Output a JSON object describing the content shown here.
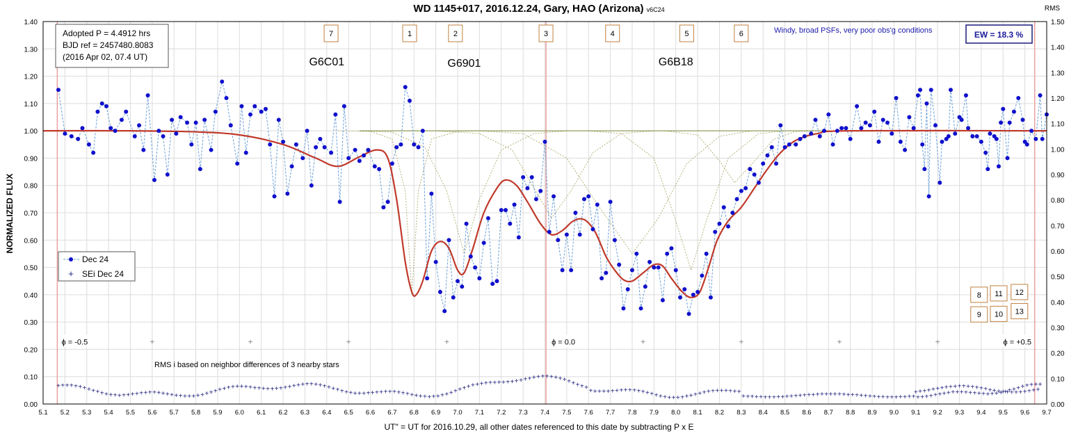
{
  "chart_data": {
    "type": "scatter",
    "title_main": "WD 1145+017, 2016.12.24, Gary, HAO (Arizona)",
    "title_version": "v6C24",
    "xlabel": "UT\" = UT for 2016.10.29, all other dates referenced to this date by subtracting P x E",
    "ylabel": "NORMALIZED FLUX",
    "y2label": "RMS",
    "xlim": [
      5.1,
      9.7
    ],
    "ylim": [
      0.0,
      1.4
    ],
    "y2lim": [
      0.0,
      1.5
    ],
    "x_ticks": [
      "5.1",
      "5.2",
      "5.3",
      "5.4",
      "5.5",
      "5.6",
      "5.7",
      "5.8",
      "5.9",
      "6.0",
      "6.1",
      "6.2",
      "6.3",
      "6.4",
      "6.5",
      "6.6",
      "6.7",
      "6.8",
      "6.9",
      "7.0",
      "7.1",
      "7.2",
      "7.3",
      "7.4",
      "7.5",
      "7.6",
      "7.7",
      "7.8",
      "7.9",
      "8.0",
      "8.1",
      "8.2",
      "8.3",
      "8.4",
      "8.5",
      "8.6",
      "8.7",
      "8.8",
      "8.9",
      "9.0",
      "9.1",
      "9.2",
      "9.3",
      "9.4",
      "9.5",
      "9.6",
      "9.7"
    ],
    "y_ticks": [
      "0.00",
      "0.10",
      "0.20",
      "0.30",
      "0.40",
      "0.50",
      "0.60",
      "0.70",
      "0.80",
      "0.90",
      "1.00",
      "1.10",
      "1.20",
      "1.30",
      "1.40"
    ],
    "y2_ticks": [
      "0.00",
      "0.10",
      "0.20",
      "0.30",
      "0.40",
      "0.50",
      "0.60",
      "0.70",
      "0.80",
      "0.90",
      "1.00",
      "1.10",
      "1.20",
      "1.30",
      "1.40",
      "1.50"
    ],
    "info_lines": [
      "Adopted P = 4.4912  hrs",
      "BJD ref = 2457480.8083",
      "(2016 Apr 02, 07.4 UT)"
    ],
    "conditions_note": "Windy, broad PSFs, very poor obs'g conditions",
    "ew_label": "EW = 18.3 %",
    "rms_note": "RMS i based on neighbor differences of 3 nearby stars",
    "legend": [
      {
        "label": "Dec 24",
        "marker": "dot-dashed",
        "color": "#1010cc"
      },
      {
        "label": "SEi Dec 24",
        "marker": "plus",
        "color": "#1a1a7a"
      }
    ],
    "phase_labels": [
      {
        "x": 5.165,
        "text": "ϕ = -0.5"
      },
      {
        "x": 7.405,
        "text": "ϕ = 0.0"
      },
      {
        "x": 9.645,
        "text": "ϕ = +0.5"
      }
    ],
    "phase_lines": [
      5.165,
      7.405,
      9.645
    ],
    "phase_tick_marks": [
      5.6,
      6.05,
      6.5,
      6.95,
      7.85,
      8.3,
      8.75,
      9.2
    ],
    "object_labels": [
      {
        "x": 6.4,
        "y": 1.24,
        "text": "G6C01"
      },
      {
        "x": 7.03,
        "y": 1.235,
        "text": "G6901"
      },
      {
        "x": 8.0,
        "y": 1.24,
        "text": "G6B18"
      }
    ],
    "dip_boxes_top": [
      {
        "x": 6.42,
        "text": "7"
      },
      {
        "x": 6.78,
        "text": "1"
      },
      {
        "x": 6.99,
        "text": "2"
      },
      {
        "x": 7.405,
        "text": "3"
      },
      {
        "x": 7.71,
        "text": "4"
      },
      {
        "x": 8.05,
        "text": "5"
      },
      {
        "x": 8.3,
        "text": "6"
      }
    ],
    "dip_boxes_right": [
      {
        "x": 9.39,
        "y": 0.4,
        "text": "8"
      },
      {
        "x": 9.39,
        "y": 0.328,
        "text": "9"
      },
      {
        "x": 9.48,
        "y": 0.33,
        "text": "10"
      },
      {
        "x": 9.48,
        "y": 0.405,
        "text": "11"
      },
      {
        "x": 9.575,
        "y": 0.41,
        "text": "12"
      },
      {
        "x": 9.575,
        "y": 0.34,
        "text": "13"
      }
    ],
    "colors": {
      "data": "#1010cc",
      "data_line": "#6a9fd8",
      "model": "#c0392b",
      "components": "#b5b07a",
      "baseline": "#7a8a3a",
      "phase_line": "#e8a0a0",
      "box_border": "#c08040",
      "grid": "#dcdcdc",
      "sei": "#1a1a7a"
    },
    "model_points": [
      [
        5.1,
        1.0
      ],
      [
        5.5,
        1.0
      ],
      [
        5.8,
        0.996
      ],
      [
        6.0,
        0.985
      ],
      [
        6.2,
        0.95
      ],
      [
        6.35,
        0.9
      ],
      [
        6.45,
        0.87
      ],
      [
        6.55,
        0.905
      ],
      [
        6.63,
        0.93
      ],
      [
        6.68,
        0.9
      ],
      [
        6.72,
        0.75
      ],
      [
        6.76,
        0.52
      ],
      [
        6.79,
        0.41
      ],
      [
        6.81,
        0.4
      ],
      [
        6.84,
        0.45
      ],
      [
        6.88,
        0.56
      ],
      [
        6.92,
        0.595
      ],
      [
        6.96,
        0.57
      ],
      [
        7.0,
        0.49
      ],
      [
        7.03,
        0.48
      ],
      [
        7.07,
        0.57
      ],
      [
        7.12,
        0.7
      ],
      [
        7.18,
        0.79
      ],
      [
        7.22,
        0.82
      ],
      [
        7.27,
        0.8
      ],
      [
        7.32,
        0.74
      ],
      [
        7.38,
        0.66
      ],
      [
        7.43,
        0.62
      ],
      [
        7.48,
        0.635
      ],
      [
        7.53,
        0.67
      ],
      [
        7.58,
        0.675
      ],
      [
        7.63,
        0.63
      ],
      [
        7.68,
        0.54
      ],
      [
        7.72,
        0.49
      ],
      [
        7.76,
        0.455
      ],
      [
        7.8,
        0.45
      ],
      [
        7.85,
        0.48
      ],
      [
        7.9,
        0.51
      ],
      [
        7.94,
        0.505
      ],
      [
        7.98,
        0.46
      ],
      [
        8.03,
        0.41
      ],
      [
        8.07,
        0.39
      ],
      [
        8.11,
        0.41
      ],
      [
        8.15,
        0.5
      ],
      [
        8.19,
        0.6
      ],
      [
        8.24,
        0.67
      ],
      [
        8.3,
        0.72
      ],
      [
        8.36,
        0.79
      ],
      [
        8.42,
        0.86
      ],
      [
        8.48,
        0.92
      ],
      [
        8.55,
        0.965
      ],
      [
        8.65,
        0.99
      ],
      [
        8.8,
        1.0
      ],
      [
        9.7,
        1.0
      ]
    ],
    "component_curves": [
      [
        [
          6.45,
          1.0
        ],
        [
          6.6,
          0.998
        ],
        [
          6.7,
          0.97
        ],
        [
          6.76,
          0.78
        ],
        [
          6.79,
          0.4
        ],
        [
          6.82,
          0.78
        ],
        [
          6.88,
          0.97
        ],
        [
          7.0,
          0.998
        ],
        [
          7.1,
          1.0
        ]
      ],
      [
        [
          6.55,
          1.0
        ],
        [
          6.7,
          0.995
        ],
        [
          6.85,
          0.94
        ],
        [
          6.95,
          0.78
        ],
        [
          7.03,
          0.55
        ],
        [
          7.1,
          0.75
        ],
        [
          7.2,
          0.93
        ],
        [
          7.35,
          0.99
        ],
        [
          7.5,
          1.0
        ]
      ],
      [
        [
          6.9,
          1.0
        ],
        [
          7.1,
          0.99
        ],
        [
          7.25,
          0.93
        ],
        [
          7.35,
          0.79
        ],
        [
          7.43,
          0.68
        ],
        [
          7.52,
          0.78
        ],
        [
          7.62,
          0.92
        ],
        [
          7.75,
          0.99
        ],
        [
          7.9,
          1.0
        ]
      ],
      [
        [
          7.1,
          1.0
        ],
        [
          7.3,
          0.99
        ],
        [
          7.5,
          0.9
        ],
        [
          7.65,
          0.72
        ],
        [
          7.8,
          0.55
        ],
        [
          7.92,
          0.68
        ],
        [
          8.05,
          0.88
        ],
        [
          8.2,
          0.98
        ],
        [
          8.35,
          1.0
        ]
      ],
      [
        [
          7.6,
          1.0
        ],
        [
          7.75,
          0.99
        ],
        [
          7.9,
          0.9
        ],
        [
          8.0,
          0.67
        ],
        [
          8.07,
          0.49
        ],
        [
          8.14,
          0.67
        ],
        [
          8.24,
          0.9
        ],
        [
          8.38,
          0.99
        ],
        [
          8.5,
          1.0
        ]
      ],
      [
        [
          7.95,
          1.0
        ],
        [
          8.1,
          0.985
        ],
        [
          8.2,
          0.89
        ],
        [
          8.27,
          0.81
        ],
        [
          8.35,
          0.88
        ],
        [
          8.45,
          0.97
        ],
        [
          8.55,
          0.998
        ],
        [
          8.65,
          1.0
        ]
      ]
    ],
    "data_y_values": [
      [
        5.17,
        1.15
      ],
      [
        5.2,
        0.99
      ],
      [
        5.23,
        0.98
      ],
      [
        5.26,
        0.97
      ],
      [
        5.28,
        1.01
      ],
      [
        5.31,
        0.95
      ],
      [
        5.33,
        0.92
      ],
      [
        5.35,
        1.07
      ],
      [
        5.37,
        1.1
      ],
      [
        5.39,
        1.09
      ],
      [
        5.41,
        1.01
      ],
      [
        5.43,
        1.0
      ],
      [
        5.46,
        1.04
      ],
      [
        5.48,
        1.07
      ],
      [
        5.52,
        0.98
      ],
      [
        5.54,
        1.02
      ],
      [
        5.56,
        0.93
      ],
      [
        5.58,
        1.13
      ],
      [
        5.61,
        0.82
      ],
      [
        5.63,
        1.0
      ],
      [
        5.65,
        0.98
      ],
      [
        5.67,
        0.84
      ],
      [
        5.69,
        1.04
      ],
      [
        5.71,
        0.99
      ],
      [
        5.73,
        1.05
      ],
      [
        5.76,
        1.03
      ],
      [
        5.78,
        0.95
      ],
      [
        5.8,
        1.03
      ],
      [
        5.82,
        0.86
      ],
      [
        5.84,
        1.04
      ],
      [
        5.87,
        0.93
      ],
      [
        5.89,
        1.07
      ],
      [
        5.92,
        1.18
      ],
      [
        5.94,
        1.12
      ],
      [
        5.96,
        1.02
      ],
      [
        5.99,
        0.88
      ],
      [
        6.01,
        1.09
      ],
      [
        6.03,
        0.92
      ],
      [
        6.05,
        1.06
      ],
      [
        6.07,
        1.09
      ],
      [
        6.1,
        1.07
      ],
      [
        6.12,
        1.08
      ],
      [
        6.14,
        0.95
      ],
      [
        6.16,
        0.76
      ],
      [
        6.18,
        1.04
      ],
      [
        6.2,
        0.96
      ],
      [
        6.22,
        0.77
      ],
      [
        6.24,
        0.87
      ],
      [
        6.26,
        0.95
      ],
      [
        6.29,
        0.9
      ],
      [
        6.31,
        1.0
      ],
      [
        6.33,
        0.8
      ],
      [
        6.35,
        0.94
      ],
      [
        6.37,
        0.97
      ],
      [
        6.39,
        0.94
      ],
      [
        6.42,
        0.92
      ],
      [
        6.44,
        1.06
      ],
      [
        6.46,
        0.74
      ],
      [
        6.48,
        1.09
      ],
      [
        6.5,
        0.9
      ],
      [
        6.53,
        0.93
      ],
      [
        6.55,
        0.89
      ],
      [
        6.57,
        0.91
      ],
      [
        6.59,
        0.93
      ],
      [
        6.62,
        0.87
      ],
      [
        6.64,
        0.86
      ],
      [
        6.66,
        0.72
      ],
      [
        6.68,
        0.74
      ],
      [
        6.7,
        0.88
      ],
      [
        6.72,
        0.94
      ],
      [
        6.74,
        0.95
      ],
      [
        6.76,
        1.16
      ],
      [
        6.78,
        1.11
      ],
      [
        6.8,
        0.95
      ],
      [
        6.82,
        0.94
      ],
      [
        6.84,
        1.0
      ],
      [
        6.86,
        0.46
      ],
      [
        6.88,
        0.77
      ],
      [
        6.9,
        0.52
      ],
      [
        6.92,
        0.41
      ],
      [
        6.94,
        0.34
      ],
      [
        6.96,
        0.6
      ],
      [
        6.98,
        0.39
      ],
      [
        7.0,
        0.45
      ],
      [
        7.02,
        0.43
      ],
      [
        7.04,
        0.66
      ],
      [
        7.06,
        0.54
      ],
      [
        7.08,
        0.5
      ],
      [
        7.1,
        0.46
      ],
      [
        7.12,
        0.59
      ],
      [
        7.14,
        0.68
      ],
      [
        7.16,
        0.44
      ],
      [
        7.18,
        0.45
      ],
      [
        7.2,
        0.71
      ],
      [
        7.22,
        0.71
      ],
      [
        7.24,
        0.66
      ],
      [
        7.26,
        0.73
      ],
      [
        7.28,
        0.61
      ],
      [
        7.3,
        0.83
      ],
      [
        7.32,
        0.79
      ],
      [
        7.34,
        0.83
      ],
      [
        7.36,
        0.75
      ],
      [
        7.38,
        0.78
      ],
      [
        7.4,
        0.96
      ],
      [
        7.42,
        0.63
      ],
      [
        7.44,
        0.76
      ],
      [
        7.46,
        0.6
      ],
      [
        7.48,
        0.49
      ],
      [
        7.5,
        0.62
      ],
      [
        7.52,
        0.49
      ],
      [
        7.54,
        0.7
      ],
      [
        7.56,
        0.62
      ],
      [
        7.58,
        0.75
      ],
      [
        7.6,
        0.76
      ],
      [
        7.62,
        0.64
      ],
      [
        7.64,
        0.73
      ],
      [
        7.66,
        0.46
      ],
      [
        7.68,
        0.48
      ],
      [
        7.7,
        0.74
      ],
      [
        7.72,
        0.6
      ],
      [
        7.74,
        0.51
      ],
      [
        7.76,
        0.35
      ],
      [
        7.78,
        0.42
      ],
      [
        7.8,
        0.49
      ],
      [
        7.82,
        0.55
      ],
      [
        7.84,
        0.35
      ],
      [
        7.86,
        0.43
      ],
      [
        7.88,
        0.52
      ],
      [
        7.9,
        0.5
      ],
      [
        7.92,
        0.5
      ],
      [
        7.94,
        0.38
      ],
      [
        7.96,
        0.55
      ],
      [
        7.98,
        0.57
      ],
      [
        8.0,
        0.49
      ],
      [
        8.02,
        0.39
      ],
      [
        8.04,
        0.42
      ],
      [
        8.06,
        0.33
      ],
      [
        8.08,
        0.4
      ],
      [
        8.1,
        0.41
      ],
      [
        8.12,
        0.47
      ],
      [
        8.14,
        0.55
      ],
      [
        8.16,
        0.39
      ],
      [
        8.18,
        0.63
      ],
      [
        8.2,
        0.66
      ],
      [
        8.22,
        0.72
      ],
      [
        8.24,
        0.65
      ],
      [
        8.26,
        0.7
      ],
      [
        8.28,
        0.75
      ],
      [
        8.3,
        0.78
      ],
      [
        8.32,
        0.79
      ],
      [
        8.34,
        0.86
      ],
      [
        8.36,
        0.84
      ],
      [
        8.38,
        0.81
      ],
      [
        8.4,
        0.88
      ],
      [
        8.42,
        0.91
      ],
      [
        8.44,
        0.94
      ],
      [
        8.46,
        0.88
      ],
      [
        8.48,
        1.02
      ],
      [
        8.5,
        0.94
      ],
      [
        8.52,
        0.95
      ],
      [
        8.55,
        0.95
      ],
      [
        8.57,
        0.97
      ],
      [
        8.59,
        0.98
      ],
      [
        8.62,
        0.99
      ],
      [
        8.64,
        1.04
      ],
      [
        8.66,
        0.98
      ],
      [
        8.68,
        1.0
      ],
      [
        8.7,
        1.06
      ],
      [
        8.72,
        0.95
      ],
      [
        8.74,
        1.0
      ],
      [
        8.76,
        1.01
      ],
      [
        8.78,
        1.01
      ],
      [
        8.8,
        0.97
      ],
      [
        8.83,
        1.09
      ],
      [
        8.85,
        1.01
      ],
      [
        8.87,
        1.03
      ],
      [
        8.89,
        1.02
      ],
      [
        8.91,
        1.07
      ],
      [
        8.93,
        0.96
      ],
      [
        8.95,
        1.04
      ],
      [
        8.97,
        1.03
      ],
      [
        8.99,
        0.99
      ],
      [
        9.01,
        1.12
      ],
      [
        9.03,
        0.96
      ],
      [
        9.05,
        0.93
      ],
      [
        9.07,
        1.05
      ],
      [
        9.09,
        1.01
      ],
      [
        9.11,
        1.13
      ],
      [
        9.12,
        1.15
      ],
      [
        9.13,
        0.95
      ],
      [
        9.14,
        0.86
      ],
      [
        9.15,
        1.1
      ],
      [
        9.16,
        0.76
      ],
      [
        9.17,
        1.15
      ],
      [
        9.19,
        1.02
      ],
      [
        9.21,
        0.81
      ],
      [
        9.22,
        0.96
      ],
      [
        9.24,
        0.97
      ],
      [
        9.25,
        0.98
      ],
      [
        9.26,
        1.15
      ],
      [
        9.28,
        0.99
      ],
      [
        9.3,
        1.05
      ],
      [
        9.31,
        1.04
      ],
      [
        9.33,
        1.13
      ],
      [
        9.34,
        1.01
      ],
      [
        9.36,
        0.98
      ],
      [
        9.38,
        0.98
      ],
      [
        9.4,
        0.96
      ],
      [
        9.42,
        0.92
      ],
      [
        9.43,
        0.86
      ],
      [
        9.44,
        0.99
      ],
      [
        9.46,
        0.98
      ],
      [
        9.47,
        0.97
      ],
      [
        9.48,
        0.87
      ],
      [
        9.49,
        1.03
      ],
      [
        9.5,
        1.08
      ],
      [
        9.52,
        0.9
      ],
      [
        9.53,
        1.03
      ],
      [
        9.55,
        1.07
      ],
      [
        9.57,
        1.12
      ],
      [
        9.59,
        1.04
      ],
      [
        9.6,
        0.96
      ],
      [
        9.61,
        0.95
      ],
      [
        9.63,
        1.0
      ],
      [
        9.65,
        0.97
      ],
      [
        9.67,
        1.13
      ],
      [
        9.68,
        0.97
      ],
      [
        9.7,
        1.06
      ]
    ]
  }
}
